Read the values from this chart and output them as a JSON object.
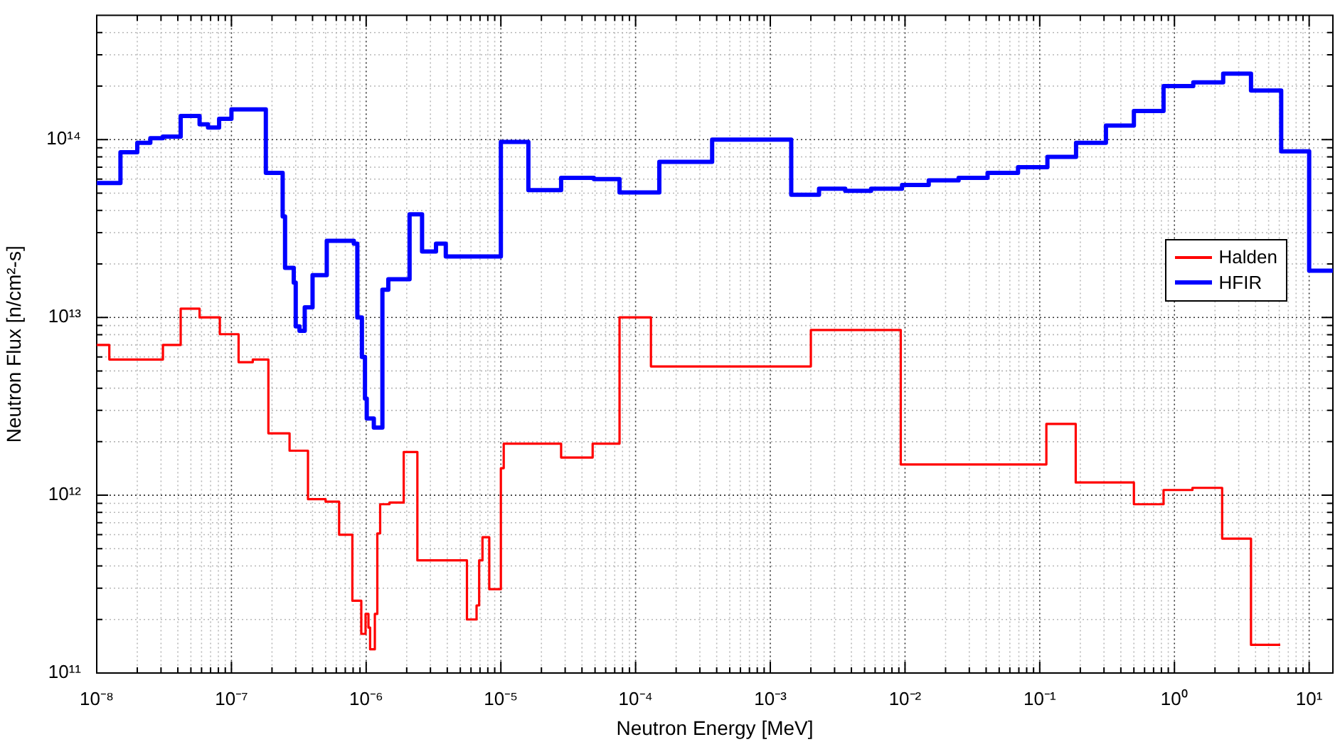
{
  "chart_data": {
    "type": "step",
    "xlabel": "Neutron Energy [MeV]",
    "ylabel": "Neutron Flux [n/cm²-s]",
    "log": "xy",
    "grid": true,
    "legend": "right",
    "marker": "none",
    "line_style": "solid",
    "xlim": [
      1e-08,
      15
    ],
    "ylim": [
      100000000000.0,
      500000000000000.0
    ],
    "xticks": [
      {
        "value": 1e-08,
        "label": "10⁻⁸"
      },
      {
        "value": 1e-07,
        "label": "10⁻⁷"
      },
      {
        "value": 1e-06,
        "label": "10⁻⁶"
      },
      {
        "value": 1e-05,
        "label": "10⁻⁵"
      },
      {
        "value": 0.0001,
        "label": "10⁻⁴"
      },
      {
        "value": 0.001,
        "label": "10⁻³"
      },
      {
        "value": 0.01,
        "label": "10⁻²"
      },
      {
        "value": 0.1,
        "label": "10⁻¹"
      },
      {
        "value": 1,
        "label": "10⁰"
      },
      {
        "value": 10,
        "label": "10¹"
      }
    ],
    "yticks": [
      {
        "value": 100000000000.0,
        "label": "10¹¹"
      },
      {
        "value": 1000000000000.0,
        "label": "10¹²"
      },
      {
        "value": 10000000000000.0,
        "label": "10¹³"
      },
      {
        "value": 100000000000000.0,
        "label": "10¹⁴"
      }
    ],
    "series": [
      {
        "name": "Halden",
        "color": "#ff0000",
        "x": [
          1e-08,
          1.24e-08,
          3.1e-08,
          4.2e-08,
          5.8e-08,
          8.2e-08,
          1.13e-07,
          1.44e-07,
          1.88e-07,
          2.7e-07,
          3.7e-07,
          5e-07,
          6.3e-07,
          7.9e-07,
          9.2e-07,
          9.9e-07,
          1.04e-06,
          1.07e-06,
          1.16e-06,
          1.21e-06,
          1.27e-06,
          1.49e-06,
          1.9e-06,
          2.4e-06,
          5.6e-06,
          6.6e-06,
          6.9e-06,
          7.3e-06,
          8.2e-06,
          1e-05,
          1.05e-05,
          2.8e-05,
          4.8e-05,
          7.6e-05,
          0.00013,
          0.002,
          0.0093,
          0.112,
          0.185,
          0.5,
          0.83,
          1.36,
          2.26,
          3.7,
          6.1
        ],
        "values": [
          7000000000000.0,
          5800000000000.0,
          7000000000000.0,
          11200000000000.0,
          10000000000000.0,
          8050000000000.0,
          5600000000000.0,
          5800000000000.0,
          2230000000000.0,
          1780000000000.0,
          950000000000.0,
          920000000000.0,
          600000000000.0,
          255000000000.0,
          166000000000.0,
          215000000000.0,
          180000000000.0,
          136000000000.0,
          215000000000.0,
          610000000000.0,
          890000000000.0,
          910000000000.0,
          1750000000000.0,
          430000000000.0,
          200000000000.0,
          240000000000.0,
          430000000000.0,
          580000000000.0,
          296000000000.0,
          1420000000000.0,
          1950000000000.0,
          1630000000000.0,
          1950000000000.0,
          10000000000000.0,
          5300000000000.0,
          8500000000000.0,
          1490000000000.0,
          2520000000000.0,
          1180000000000.0,
          890000000000.0,
          1070000000000.0,
          1100000000000.0,
          570000000000.0,
          144000000000.0,
          144000000000.0
        ]
      },
      {
        "name": "HFIR",
        "color": "#0000ff",
        "x": [
          1e-08,
          1.5e-08,
          2e-08,
          2.5e-08,
          3.1e-08,
          4.2e-08,
          5.8e-08,
          6.7e-08,
          8.1e-08,
          1e-07,
          1.8e-07,
          2.4e-07,
          2.5e-07,
          2.9e-07,
          3e-07,
          3.2e-07,
          3.5e-07,
          4e-07,
          5.1e-07,
          8.1e-07,
          8.6e-07,
          9.3e-07,
          9.8e-07,
          1.01e-06,
          1.14e-06,
          1.32e-06,
          1.46e-06,
          2.1e-06,
          2.6e-06,
          3.3e-06,
          3.9e-06,
          1e-05,
          1.6e-05,
          2.8e-05,
          4.9e-05,
          7.6e-05,
          0.00015,
          0.00037,
          0.00143,
          0.0023,
          0.0036,
          0.0056,
          0.0095,
          0.015,
          0.025,
          0.041,
          0.069,
          0.114,
          0.186,
          0.31,
          0.5,
          0.83,
          1.38,
          2.3,
          3.7,
          6.2,
          10,
          15
        ],
        "values": [
          57000000000000.0,
          85000000000000.0,
          96000000000000.0,
          102000000000000.0,
          104000000000000.0,
          136000000000000.0,
          122000000000000.0,
          117000000000000.0,
          131000000000000.0,
          148000000000000.0,
          65000000000000.0,
          37000000000000.0,
          19000000000000.0,
          15700000000000.0,
          8900000000000.0,
          8400000000000.0,
          11400000000000.0,
          17300000000000.0,
          27000000000000.0,
          26000000000000.0,
          10000000000000.0,
          6000000000000.0,
          3500000000000.0,
          2700000000000.0,
          2400000000000.0,
          14300000000000.0,
          16400000000000.0,
          38000000000000.0,
          23500000000000.0,
          26000000000000.0,
          22000000000000.0,
          97000000000000.0,
          52000000000000.0,
          61000000000000.0,
          60000000000000.0,
          50500000000000.0,
          75000000000000.0,
          100000000000000.0,
          49000000000000.0,
          53000000000000.0,
          51500000000000.0,
          53000000000000.0,
          55600000000000.0,
          59000000000000.0,
          61000000000000.0,
          65000000000000.0,
          70000000000000.0,
          80000000000000.0,
          96000000000000.0,
          120000000000000.0,
          145000000000000.0,
          200000000000000.0,
          210000000000000.0,
          235000000000000.0,
          189000000000000.0,
          86000000000000.0,
          18300000000000.0,
          18300000000000.0
        ]
      }
    ]
  }
}
